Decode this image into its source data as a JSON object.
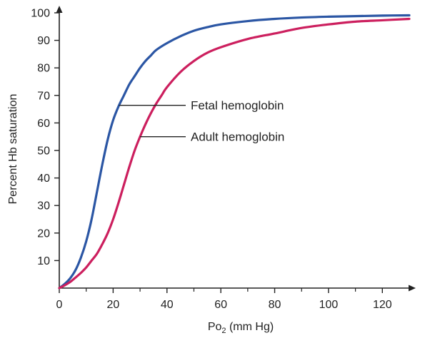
{
  "chart_data": {
    "type": "line",
    "title": "",
    "xlabel": "Po",
    "xlabel_sub": "2",
    "xlabel_suffix": " (mm Hg)",
    "ylabel": "Percent Hb saturation",
    "xlim": [
      0,
      130
    ],
    "ylim": [
      0,
      100
    ],
    "x_ticks": [
      0,
      20,
      40,
      60,
      80,
      100,
      120
    ],
    "x_minor_ticks": [
      10,
      30,
      50,
      70,
      90,
      110
    ],
    "y_ticks": [
      10,
      20,
      30,
      40,
      50,
      60,
      70,
      80,
      90,
      100
    ],
    "y_tick_labels": [
      "10",
      "20",
      "30",
      "40",
      "50",
      "60",
      "70",
      "80",
      "90",
      "100"
    ],
    "x_tick_labels": [
      "0",
      "20",
      "40",
      "60",
      "80",
      "100",
      "120"
    ],
    "grid": false,
    "legend": "none",
    "series": [
      {
        "name": "Fetal hemoglobin",
        "color": "#2b56a4",
        "x": [
          0,
          2,
          4,
          6,
          8,
          10,
          12,
          14,
          16,
          18,
          20,
          22,
          24,
          26,
          28,
          30,
          32,
          34,
          36,
          40,
          45,
          50,
          55,
          60,
          70,
          80,
          90,
          100,
          110,
          120,
          130
        ],
        "y": [
          0,
          1.5,
          3.5,
          6.5,
          11,
          17,
          25,
          35,
          45,
          54,
          61,
          66,
          70,
          74,
          77,
          80,
          82.5,
          84.5,
          86.5,
          89,
          91.5,
          93.5,
          94.8,
          95.8,
          97,
          97.8,
          98.3,
          98.6,
          98.8,
          99,
          99.1
        ]
      },
      {
        "name": "Adult hemoglobin",
        "color": "#cc1f5e",
        "x": [
          0,
          2,
          4,
          6,
          8,
          10,
          12,
          14,
          16,
          18,
          20,
          22,
          24,
          26,
          28,
          30,
          32,
          34,
          36,
          38,
          40,
          45,
          50,
          55,
          60,
          70,
          80,
          90,
          100,
          110,
          120,
          130
        ],
        "y": [
          0,
          1,
          2.2,
          3.8,
          5.5,
          7.5,
          10,
          12.5,
          16,
          20,
          25,
          31,
          37.5,
          44,
          50,
          55,
          59.5,
          63.5,
          67,
          70,
          73,
          78.5,
          82.5,
          85.5,
          87.5,
          90.5,
          92.5,
          94.5,
          95.8,
          96.8,
          97.3,
          97.8
        ]
      }
    ],
    "annotations": [
      {
        "text": "Fetal hemoglobin",
        "series": 0,
        "at_x": 22.2
      },
      {
        "text": "Adult hemoglobin",
        "series": 1,
        "at_x": 30
      }
    ]
  }
}
